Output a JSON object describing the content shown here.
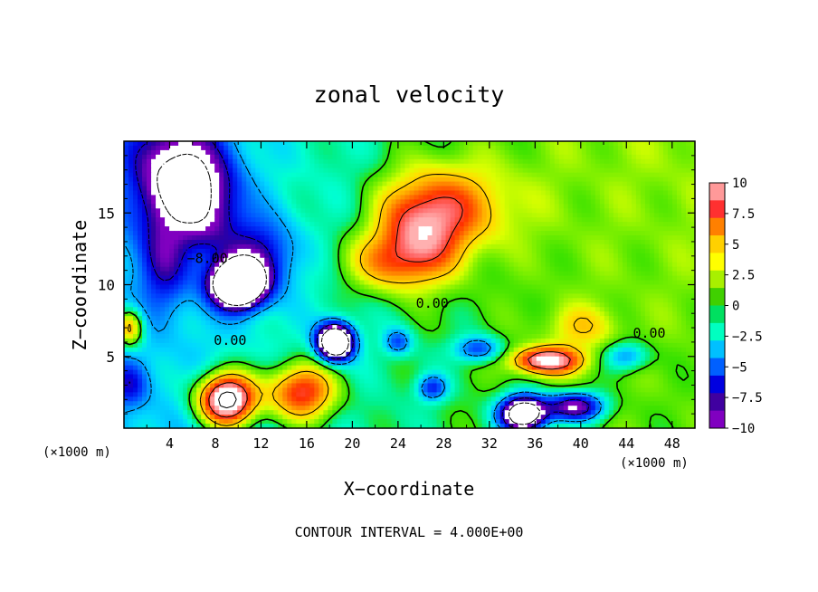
{
  "chart_data": {
    "type": "heatmap",
    "title": "zonal velocity",
    "xlabel": "X−coordinate",
    "ylabel": "Z−coordinate",
    "x_unit": "(×1000 m)",
    "x_unit_right": "(×1000 m)",
    "footer": "CONTOUR INTERVAL = 4.000E+00",
    "xlim": [
      0,
      50
    ],
    "ylim": [
      0,
      20
    ],
    "x_ticks": [
      4,
      8,
      12,
      16,
      20,
      24,
      28,
      32,
      36,
      40,
      44,
      48
    ],
    "x_tick_labels": [
      "4",
      "8",
      "12",
      "16",
      "20",
      "24",
      "28",
      "32",
      "36",
      "40",
      "44",
      "48"
    ],
    "y_ticks": [
      5,
      10,
      15
    ],
    "y_tick_labels": [
      "5",
      "10",
      "15"
    ],
    "colorbar": {
      "range": [
        -10,
        10
      ],
      "ticks": [
        10,
        7.5,
        5,
        2.5,
        0,
        -2.5,
        -5,
        -7.5,
        -10
      ],
      "tick_labels": [
        "10",
        "7.5",
        "5",
        "2.5",
        "0",
        "−2.5",
        "−5",
        "−7.5",
        "−10"
      ],
      "colors": [
        "#ff9999",
        "#ff3030",
        "#ff8000",
        "#ffd000",
        "#ffff00",
        "#a8f000",
        "#40d000",
        "#00e060",
        "#00ffc0",
        "#00c0ff",
        "#0060ff",
        "#0000e0",
        "#4000a0",
        "#8000c0"
      ]
    },
    "contour_labels": [
      {
        "text": "0.00",
        "x": 27.0,
        "y": 8.4
      },
      {
        "text": "0.00",
        "x": 9.3,
        "y": 5.8
      },
      {
        "text": "0.00",
        "x": 46.0,
        "y": 6.3
      },
      {
        "text": "−8.00",
        "x": 7.3,
        "y": 11.5
      }
    ],
    "features": [
      {
        "x": 4.0,
        "y": 17.5,
        "sx": 3.5,
        "sy": 4.5,
        "amp": -9
      },
      {
        "x": 7.5,
        "y": 16.0,
        "sx": 3.0,
        "sy": 4.0,
        "amp": -7
      },
      {
        "x": 10.0,
        "y": 10.0,
        "sx": 2.2,
        "sy": 1.5,
        "amp": -22
      },
      {
        "x": 12.0,
        "y": 12.0,
        "sx": 3.0,
        "sy": 2.5,
        "amp": -6
      },
      {
        "x": 18.5,
        "y": 6.0,
        "sx": 1.5,
        "sy": 1.2,
        "amp": -20
      },
      {
        "x": 26.0,
        "y": 14.0,
        "sx": 4.0,
        "sy": 3.5,
        "amp": 9
      },
      {
        "x": 23.0,
        "y": 11.5,
        "sx": 4.0,
        "sy": 2.0,
        "amp": 5
      },
      {
        "x": 30.0,
        "y": 15.5,
        "sx": 5.0,
        "sy": 3.0,
        "amp": 4
      },
      {
        "x": 9.0,
        "y": 2.0,
        "sx": 2.5,
        "sy": 1.8,
        "amp": 16
      },
      {
        "x": 15.5,
        "y": 2.5,
        "sx": 3.0,
        "sy": 2.0,
        "amp": 10
      },
      {
        "x": 37.0,
        "y": 4.7,
        "sx": 3.0,
        "sy": 0.9,
        "amp": 11
      },
      {
        "x": 35.0,
        "y": 1.0,
        "sx": 2.0,
        "sy": 1.2,
        "amp": -18
      },
      {
        "x": 39.5,
        "y": 1.5,
        "sx": 2.5,
        "sy": 1.0,
        "amp": -11
      },
      {
        "x": 31.0,
        "y": 5.5,
        "sx": 2.0,
        "sy": 0.9,
        "amp": -6
      },
      {
        "x": 27.0,
        "y": 2.8,
        "sx": 1.3,
        "sy": 0.9,
        "amp": -6
      },
      {
        "x": 24.0,
        "y": 6.0,
        "sx": 1.2,
        "sy": 0.9,
        "amp": -5
      },
      {
        "x": 44.0,
        "y": 5.0,
        "sx": 2.0,
        "sy": 1.0,
        "amp": -5
      },
      {
        "x": 0.5,
        "y": 7.0,
        "sx": 1.2,
        "sy": 1.3,
        "amp": 8
      },
      {
        "x": 0.5,
        "y": 3.0,
        "sx": 1.5,
        "sy": 1.5,
        "amp": -4
      },
      {
        "x": 40.0,
        "y": 7.0,
        "sx": 3.0,
        "sy": 1.5,
        "amp": 3
      },
      {
        "x": 3.5,
        "y": 11.0,
        "sx": 2.0,
        "sy": 3.0,
        "amp": -4
      }
    ],
    "background": {
      "left_value": -3.5,
      "right_value": 0.5,
      "upper_right_value": 2.5
    }
  }
}
